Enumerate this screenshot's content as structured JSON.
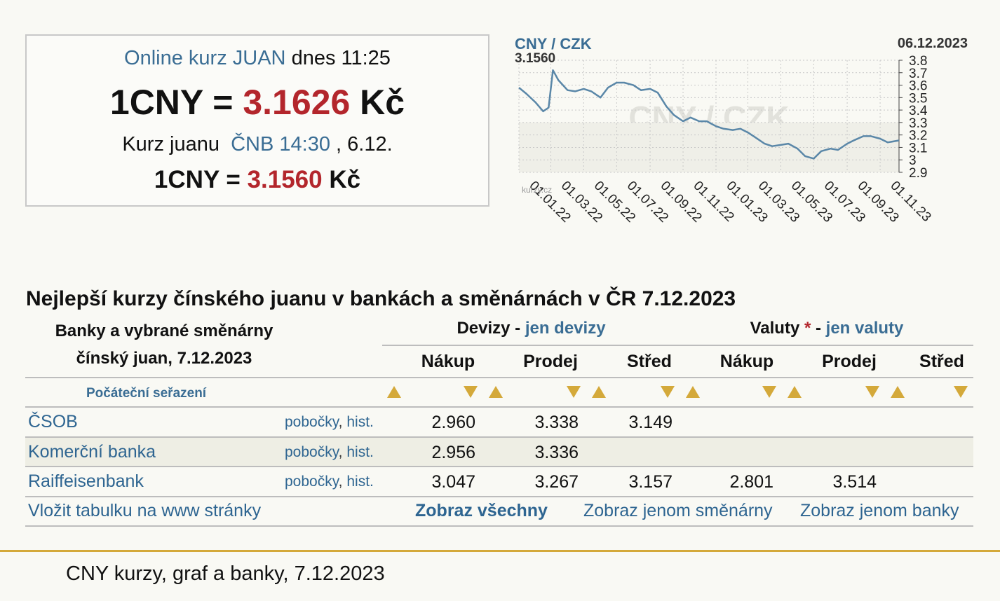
{
  "rate_box": {
    "online_label": "Online kurz JUAN",
    "online_time": "dnes 11:25",
    "online_lhs": "1CNY = ",
    "online_value": "3.1626",
    "online_unit": " Kč",
    "cnb_label": "Kurz juanu",
    "cnb_link": "ČNB 14:30",
    "cnb_date": ", 6.12.",
    "cnb_lhs": "1CNY = ",
    "cnb_value": "3.1560",
    "cnb_unit": " Kč"
  },
  "chart": {
    "pair_label": "CNY / CZK",
    "last_value_label": "3.1560",
    "date_label": "06.12.2023",
    "watermark": "CNY / CZK",
    "brand_small": "kurzy.cz",
    "colors": {
      "line": "#5a87a8",
      "pair": "#3a6d94",
      "grid": "#c8c8c8"
    }
  },
  "chart_data": {
    "type": "line",
    "title": "CNY / CZK",
    "xlabel": "",
    "ylabel": "",
    "ylim": [
      2.9,
      3.8
    ],
    "yticks": [
      "3.8",
      "3.7",
      "3.6",
      "3.5",
      "3.4",
      "3.3",
      "3.2",
      "3.1",
      "3",
      "2.9"
    ],
    "xticks": [
      "01.01.22",
      "01.03.22",
      "01.05.22",
      "01.07.22",
      "01.09.22",
      "01.11.22",
      "01.01.23",
      "01.03.23",
      "01.05.23",
      "01.07.23",
      "01.09.23",
      "01.11.23"
    ],
    "grid": true,
    "series": [
      {
        "x": [
          "2022-01-01",
          "2022-01-15",
          "2022-02-01",
          "2022-02-15",
          "2022-02-25",
          "2022-03-05",
          "2022-03-15",
          "2022-04-01",
          "2022-04-15",
          "2022-05-01",
          "2022-05-15",
          "2022-06-01",
          "2022-06-15",
          "2022-07-01",
          "2022-07-15",
          "2022-08-01",
          "2022-08-15",
          "2022-09-01",
          "2022-09-15",
          "2022-10-01",
          "2022-10-15",
          "2022-11-01",
          "2022-11-15",
          "2022-12-01",
          "2022-12-15",
          "2023-01-01",
          "2023-01-15",
          "2023-02-01",
          "2023-02-15",
          "2023-03-01",
          "2023-03-15",
          "2023-04-01",
          "2023-04-15",
          "2023-05-01",
          "2023-05-15",
          "2023-06-01",
          "2023-06-15",
          "2023-07-01",
          "2023-07-15",
          "2023-08-01",
          "2023-08-15",
          "2023-09-01",
          "2023-09-15",
          "2023-10-01",
          "2023-10-15",
          "2023-11-01",
          "2023-11-15",
          "2023-12-06"
        ],
        "values": [
          3.58,
          3.53,
          3.46,
          3.39,
          3.42,
          3.72,
          3.64,
          3.56,
          3.55,
          3.57,
          3.55,
          3.5,
          3.58,
          3.62,
          3.62,
          3.6,
          3.56,
          3.57,
          3.54,
          3.43,
          3.36,
          3.31,
          3.34,
          3.31,
          3.31,
          3.27,
          3.25,
          3.24,
          3.25,
          3.22,
          3.18,
          3.13,
          3.11,
          3.12,
          3.13,
          3.09,
          3.03,
          3.01,
          3.07,
          3.09,
          3.08,
          3.13,
          3.16,
          3.19,
          3.19,
          3.17,
          3.14,
          3.156
        ]
      }
    ]
  },
  "table": {
    "title": "Nejlepší kurzy čínského juanu v bankách a směnárnách v ČR 7.12.2023",
    "banks_header_1": "Banky a vybrané směnárny",
    "banks_header_2": "čínský juan, 7.12.2023",
    "devizy_label": "Devizy",
    "devizy_dash": " - ",
    "devizy_link": "jen devizy",
    "valuty_label": "Valuty",
    "valuty_star": " *",
    "valuty_dash": " - ",
    "valuty_link": "jen valuty",
    "col_buy": "Nákup",
    "col_sell": "Prodej",
    "col_mid": "Střed",
    "sort_label": "Počáteční seřazení",
    "link_branches": "pobočky",
    "link_sep": ", ",
    "link_hist": "hist.",
    "rows": [
      {
        "bank": "ČSOB",
        "dev_buy": "2.960",
        "dev_sell": "3.338",
        "dev_mid": "3.149",
        "val_buy": "",
        "val_sell": "",
        "val_mid": ""
      },
      {
        "bank": "Komerční banka",
        "dev_buy": "2.956",
        "dev_sell": "3.336",
        "dev_mid": "",
        "val_buy": "",
        "val_sell": "",
        "val_mid": ""
      },
      {
        "bank": "Raiffeisenbank",
        "dev_buy": "3.047",
        "dev_sell": "3.267",
        "dev_mid": "3.157",
        "val_buy": "2.801",
        "val_sell": "3.514",
        "val_mid": ""
      }
    ],
    "footer_embed": "Vložit tabulku na www stránky",
    "footer_all": "Zobraz všechny",
    "footer_exchanges": "Zobraz jenom směnárny",
    "footer_banks": "Zobraz jenom banky"
  },
  "footer": {
    "caption": "CNY kurzy, graf a banky, 7.12.2023"
  }
}
